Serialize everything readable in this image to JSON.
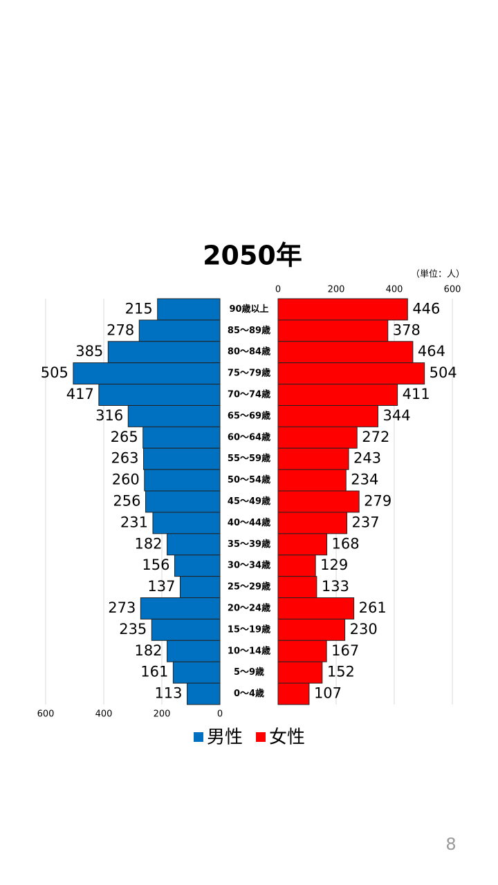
{
  "chart_data": {
    "type": "pyramid",
    "title": "2050年",
    "unit_label": "（単位：人）",
    "categories": [
      "90歳以上",
      "85～89歳",
      "80～84歳",
      "75～79歳",
      "70～74歳",
      "65～69歳",
      "60～64歳",
      "55～59歳",
      "50～54歳",
      "45～49歳",
      "40～44歳",
      "35～39歳",
      "30～34歳",
      "25～29歳",
      "20～24歳",
      "15～19歳",
      "10～14歳",
      "5～9歳",
      "0～4歳"
    ],
    "series": [
      {
        "name": "男性",
        "color": "#0070c0",
        "values": [
          215,
          278,
          385,
          505,
          417,
          316,
          265,
          263,
          260,
          256,
          231,
          182,
          156,
          137,
          273,
          235,
          182,
          161,
          113
        ]
      },
      {
        "name": "女性",
        "color": "#ff0000",
        "values": [
          446,
          378,
          464,
          504,
          411,
          344,
          272,
          243,
          234,
          279,
          237,
          168,
          129,
          133,
          261,
          230,
          167,
          152,
          107
        ]
      }
    ],
    "xlim": [
      0,
      600
    ],
    "xticks": [
      0,
      200,
      400,
      600
    ],
    "grid": true
  },
  "page_number": "8"
}
